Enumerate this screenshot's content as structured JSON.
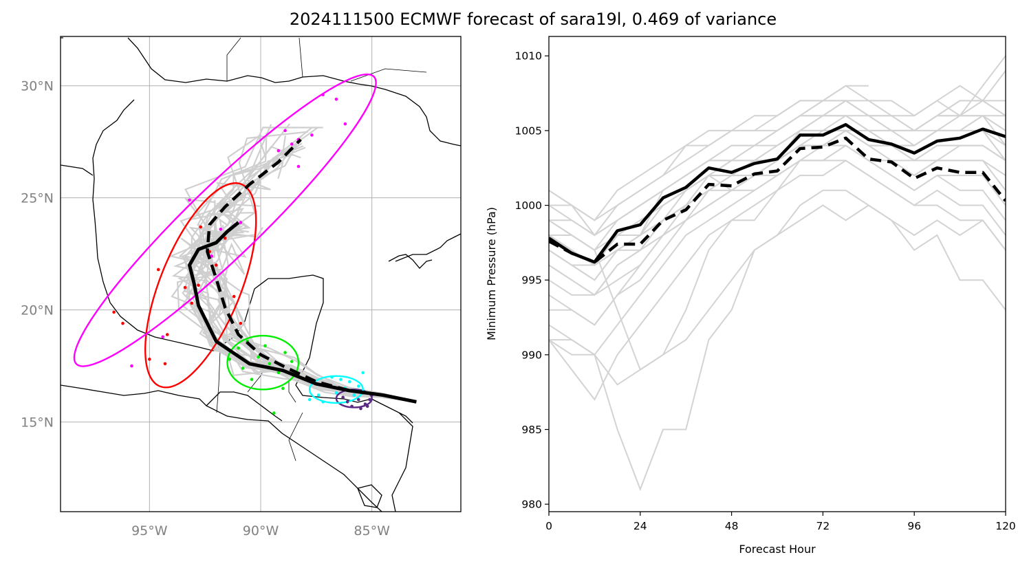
{
  "figure": {
    "title": "2024111500 ECMWF forecast of sara19l, 0.469 of variance"
  },
  "chart_data": [
    {
      "type": "scatter",
      "panel": "map",
      "x_ticks": [
        -95,
        -90,
        -85
      ],
      "x_tick_labels": [
        "95°W",
        "90°W",
        "85°W"
      ],
      "y_ticks": [
        15,
        20,
        25,
        30
      ],
      "y_tick_labels": [
        "15°N",
        "20°N",
        "25°N",
        "30°N"
      ],
      "lon_range": [
        -99.0,
        -81.0
      ],
      "lat_range": [
        11.0,
        32.2
      ],
      "grid": true,
      "colors": {
        "ensemble": "#cfcfcf",
        "day1": "#5b2a86",
        "day2": "#00ffff",
        "day3": "#00ee00",
        "day4": "#ff0000",
        "day5": "#ff00ff",
        "coast": "#000000"
      },
      "mean_track_solid": [
        [
          -83.0,
          15.9
        ],
        [
          -84.5,
          16.2
        ],
        [
          -86.0,
          16.4
        ],
        [
          -87.5,
          16.7
        ],
        [
          -89.0,
          17.3
        ],
        [
          -90.5,
          17.6
        ],
        [
          -92.0,
          18.6
        ],
        [
          -92.8,
          20.2
        ],
        [
          -93.0,
          21.2
        ],
        [
          -93.2,
          22.0
        ],
        [
          -92.8,
          22.7
        ],
        [
          -92.0,
          23.0
        ],
        [
          -91.5,
          23.5
        ],
        [
          -91.0,
          23.9
        ]
      ],
      "mean_track_dashed": [
        [
          -83.0,
          15.9
        ],
        [
          -84.5,
          16.2
        ],
        [
          -86.0,
          16.4
        ],
        [
          -87.5,
          16.8
        ],
        [
          -88.8,
          17.4
        ],
        [
          -90.0,
          18.0
        ],
        [
          -91.0,
          18.9
        ],
        [
          -91.6,
          20.1
        ],
        [
          -92.0,
          21.4
        ],
        [
          -92.4,
          22.6
        ],
        [
          -92.3,
          23.8
        ],
        [
          -91.6,
          24.6
        ],
        [
          -90.5,
          25.6
        ],
        [
          -89.2,
          26.6
        ],
        [
          -88.2,
          27.6
        ]
      ],
      "ellipses": [
        {
          "day": "day1",
          "cx": -85.8,
          "cy": 16.05,
          "rx": 0.8,
          "ry": 0.4,
          "angle": 0
        },
        {
          "day": "day2",
          "cx": -86.6,
          "cy": 16.45,
          "rx": 1.2,
          "ry": 0.6,
          "angle": 0
        },
        {
          "day": "day3",
          "cx": -89.9,
          "cy": 17.65,
          "rx": 1.6,
          "ry": 1.2,
          "angle": 0
        },
        {
          "day": "day4",
          "cx": -92.7,
          "cy": 21.1,
          "rx": 4.9,
          "ry": 1.8,
          "angle": -68
        },
        {
          "day": "day5",
          "cx": -91.6,
          "cy": 24.0,
          "rx": 9.3,
          "ry": 1.6,
          "angle": -44
        }
      ],
      "points": {
        "day1": [
          [
            -85.3,
            15.8
          ],
          [
            -85.6,
            16.0
          ],
          [
            -85.8,
            16.2
          ],
          [
            -86.1,
            15.9
          ],
          [
            -85.4,
            16.3
          ],
          [
            -85.1,
            16.0
          ],
          [
            -85.9,
            15.7
          ],
          [
            -85.5,
            15.6
          ],
          [
            -86.3,
            16.1
          ],
          [
            -85.2,
            15.7
          ],
          [
            -85.7,
            16.4
          ],
          [
            -85.0,
            16.2
          ]
        ],
        "day2": [
          [
            -86.2,
            16.5
          ],
          [
            -86.6,
            16.3
          ],
          [
            -87.0,
            16.6
          ],
          [
            -86.0,
            16.8
          ],
          [
            -85.8,
            16.2
          ],
          [
            -87.4,
            16.2
          ],
          [
            -86.4,
            16.9
          ],
          [
            -85.6,
            16.6
          ],
          [
            -87.8,
            16.0
          ],
          [
            -86.8,
            17.0
          ],
          [
            -85.4,
            17.2
          ],
          [
            -87.2,
            15.9
          ]
        ],
        "day3": [
          [
            -89.6,
            17.6
          ],
          [
            -90.1,
            17.9
          ],
          [
            -90.8,
            17.4
          ],
          [
            -89.2,
            17.2
          ],
          [
            -91.0,
            18.3
          ],
          [
            -88.6,
            17.7
          ],
          [
            -90.4,
            16.9
          ],
          [
            -89.8,
            18.4
          ],
          [
            -91.4,
            17.8
          ],
          [
            -88.9,
            18.1
          ],
          [
            -90.6,
            18.6
          ],
          [
            -89.4,
            15.4
          ],
          [
            -89.0,
            16.5
          ]
        ],
        "day4": [
          [
            -92.3,
            22.6
          ],
          [
            -92.8,
            21.1
          ],
          [
            -93.4,
            21.0
          ],
          [
            -92.0,
            22.0
          ],
          [
            -91.6,
            23.2
          ],
          [
            -94.2,
            18.9
          ],
          [
            -96.6,
            19.9
          ],
          [
            -96.2,
            19.4
          ],
          [
            -95.0,
            17.8
          ],
          [
            -94.3,
            17.6
          ],
          [
            -93.1,
            20.3
          ],
          [
            -91.2,
            20.6
          ],
          [
            -90.9,
            19.4
          ],
          [
            -94.6,
            21.8
          ],
          [
            -92.7,
            23.7
          ]
        ],
        "day5": [
          [
            -88.3,
            27.6
          ],
          [
            -87.2,
            29.6
          ],
          [
            -86.6,
            29.4
          ],
          [
            -87.7,
            27.8
          ],
          [
            -88.6,
            27.4
          ],
          [
            -86.2,
            28.3
          ],
          [
            -90.9,
            23.9
          ],
          [
            -91.8,
            23.6
          ],
          [
            -95.8,
            17.5
          ],
          [
            -94.4,
            18.8
          ],
          [
            -92.2,
            22.4
          ],
          [
            -88.9,
            28.0
          ],
          [
            -88.3,
            26.4
          ],
          [
            -89.2,
            27.1
          ],
          [
            -93.2,
            24.9
          ]
        ]
      }
    },
    {
      "type": "line",
      "panel": "pressure",
      "xlabel": "Forecast Hour",
      "ylabel": "Minimum Pressure (hPa)",
      "xlim": [
        0,
        120
      ],
      "ylim": [
        979.5,
        1011.3
      ],
      "x_ticks": [
        0,
        24,
        48,
        72,
        96,
        120
      ],
      "y_ticks": [
        980,
        985,
        990,
        995,
        1000,
        1005,
        1010
      ],
      "x": [
        0,
        6,
        12,
        18,
        24,
        30,
        36,
        42,
        48,
        54,
        60,
        66,
        72,
        78,
        84,
        90,
        96,
        102,
        108,
        114,
        120
      ],
      "mean_solid": [
        997.8,
        996.8,
        996.2,
        998.3,
        998.7,
        1000.5,
        1001.2,
        1002.5,
        1002.2,
        1002.8,
        1003.1,
        1004.7,
        1004.7,
        1005.4,
        1004.4,
        1004.1,
        1003.5,
        1004.3,
        1004.5,
        1005.1,
        1004.6
      ],
      "mean_dashed": [
        997.6,
        996.8,
        996.2,
        997.4,
        997.4,
        999.0,
        999.7,
        1001.4,
        1001.3,
        1002.1,
        1002.3,
        1003.8,
        1003.9,
        1004.5,
        1003.1,
        1002.9,
        1001.8,
        1002.5,
        1002.2,
        1002.2,
        1000.3
      ],
      "members": [
        [
          998,
          997,
          996,
          998,
          999,
          1000,
          1001,
          1002,
          1002,
          1003,
          1003,
          1004,
          1005,
          1005,
          1004,
          1004,
          1004,
          1005,
          1006,
          1008,
          1010
        ],
        [
          997,
          996,
          995,
          997,
          998,
          1001,
          1002,
          1003,
          1003,
          1004,
          1004,
          1005,
          1006,
          1006,
          1005,
          1005,
          1005,
          1006,
          1007,
          1007,
          1009
        ],
        [
          999,
          998,
          997,
          999,
          1000,
          1001,
          1002,
          1003,
          1004,
          1004,
          1005,
          1006,
          1007,
          1007,
          1006,
          1006,
          1006,
          1007,
          1008,
          1007,
          1007
        ],
        [
          996,
          995,
          994,
          996,
          997,
          999,
          1000,
          1002,
          1002,
          1003,
          1003,
          1005,
          1005,
          1006,
          1005,
          1004,
          1004,
          1005,
          1005,
          1006,
          1005
        ],
        [
          998,
          997,
          996,
          998,
          999,
          1000,
          1001,
          1002,
          1001,
          1002,
          1003,
          1004,
          1004,
          1005,
          1004,
          1003,
          1003,
          1004,
          1004,
          1004,
          1003
        ],
        [
          999,
          998,
          997,
          998,
          998,
          999,
          1000,
          1001,
          1001,
          1002,
          1002,
          1003,
          1004,
          1004,
          1003,
          1003,
          1002,
          1003,
          1003,
          1003,
          1002
        ],
        [
          997,
          996,
          995,
          997,
          997,
          998,
          999,
          1000,
          1001,
          1001,
          1002,
          1003,
          1003,
          1004,
          1003,
          1002,
          1001,
          1002,
          1002,
          1002,
          1000
        ],
        [
          1000,
          999,
          998,
          999,
          1000,
          1001,
          1002,
          1003,
          1003,
          1004,
          1005,
          1006,
          1006,
          1006,
          1006,
          1005,
          1005,
          1006,
          1006,
          1007,
          1006
        ],
        [
          1001,
          1000,
          999,
          1000,
          1001,
          1002,
          1003,
          1004,
          1005,
          1005,
          1006,
          1007,
          1007,
          1008,
          1007,
          1007,
          1006,
          1007,
          1006,
          1006,
          1004
        ],
        [
          998,
          997,
          996,
          997,
          998,
          1000,
          1001,
          1002,
          1003,
          1003,
          1004,
          1005,
          1005,
          1005,
          1005,
          1004,
          1004,
          1005,
          1005,
          1005,
          1004
        ],
        [
          993,
          993,
          992,
          994,
          995,
          997,
          999,
          1000,
          1001,
          1002,
          1003,
          1004,
          1005,
          1005,
          1004,
          1004,
          1003,
          1003,
          1004,
          1004,
          1003
        ],
        [
          995,
          994,
          994,
          995,
          996,
          998,
          999,
          1001,
          1002,
          1002,
          1003,
          1004,
          1004,
          1005,
          1004,
          1003,
          1002,
          1003,
          1003,
          1003,
          1001
        ],
        [
          992,
          991,
          990,
          992,
          994,
          996,
          998,
          999,
          1000,
          1001,
          1002,
          1003,
          1003,
          1004,
          1003,
          1002,
          1001,
          1002,
          1001,
          1001,
          999
        ],
        [
          991,
          989,
          987,
          990,
          992,
          994,
          996,
          998,
          999,
          1000,
          1001,
          1002,
          1002,
          1003,
          1002,
          1001,
          1000,
          1001,
          1000,
          1000,
          998
        ],
        [
          991,
          990,
          990,
          988,
          989,
          990,
          991,
          993,
          995,
          997,
          998,
          1000,
          1001,
          1001,
          1000,
          999,
          998,
          999,
          998,
          999,
          997
        ],
        [
          991,
          991,
          990,
          985,
          981,
          985,
          985,
          991,
          993,
          997,
          998,
          999,
          1000,
          999,
          1000,
          999,
          997,
          998,
          995,
          995,
          993
        ],
        [
          998,
          998,
          997,
          993,
          989,
          990,
          993,
          997,
          999,
          999,
          1001,
          1003,
          1003,
          1003,
          1002,
          1001,
          1000,
          1000,
          999,
          999,
          997
        ],
        [
          1001,
          1000,
          999,
          1001,
          1002,
          1003,
          1004,
          1005,
          1005,
          1006,
          1006,
          1007,
          1007,
          1007,
          1007,
          1006,
          1005,
          1006,
          1006,
          1006,
          1005
        ],
        [
          1000,
          1000,
          998,
          1000,
          1001,
          1002,
          1004,
          1004,
          1005,
          1005,
          1005,
          1006,
          1006,
          1007,
          1006,
          1005,
          1005,
          1005,
          1005,
          1005,
          1003
        ],
        [
          994,
          993,
          992,
          994,
          996,
          998,
          1000,
          1001,
          1002,
          1003,
          1003,
          1005,
          1006,
          1006,
          1005,
          1005,
          1004,
          1005,
          1005,
          1006,
          1006
        ],
        [
          997,
          996,
          996,
          997,
          998,
          999,
          1001,
          1002,
          1003,
          1003,
          1004,
          1005,
          1006,
          1007,
          1006,
          1006,
          1005,
          1006,
          1007,
          1007,
          1006
        ],
        [
          999,
          999,
          998,
          999,
          1000,
          1001,
          1002,
          1003,
          1004,
          1004,
          1005,
          1006,
          1007,
          1008,
          1008,
          null,
          null,
          null,
          null,
          null,
          null
        ],
        [
          996,
          995,
          994,
          996,
          997,
          999,
          1000,
          1001,
          1002,
          1002,
          1003,
          1004,
          1004,
          1005,
          1004,
          1004,
          1003,
          1004,
          1004,
          1004,
          1003
        ]
      ],
      "colors": {
        "members": "#d3d3d3",
        "mean": "#000000"
      }
    }
  ]
}
